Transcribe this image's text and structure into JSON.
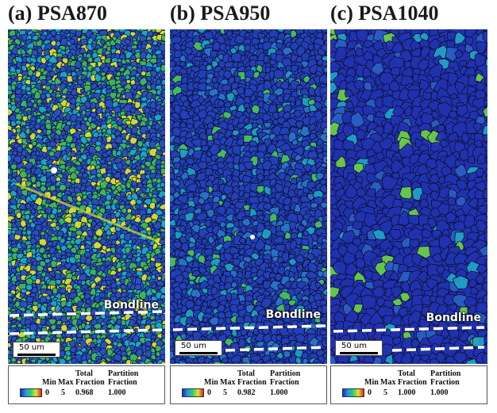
{
  "panels": [
    {
      "title": "(a) PSA870",
      "bondline_label": "Bondline",
      "scale_label": "50 um",
      "legend": {
        "min_label": "Min",
        "max_label": "Max",
        "total_header_1": "Total",
        "total_header_2": "Fraction",
        "partition_header_1": "Partition",
        "partition_header_2": "Fraction",
        "min_value": "0",
        "max_value": "5",
        "total_fraction": "0.968",
        "partition_fraction": "1.000"
      },
      "colors": {
        "base": "#2a4fc0",
        "accent": "#3fb85a",
        "accent2": "#1fa8c8",
        "hi": "#d8e030"
      }
    },
    {
      "title": "(b) PSA950",
      "bondline_label": "Bondline",
      "scale_label": "50 um",
      "legend": {
        "min_label": "Min",
        "max_label": "Max",
        "total_header_1": "Total",
        "total_header_2": "Fraction",
        "partition_header_1": "Partition",
        "partition_header_2": "Fraction",
        "min_value": "0",
        "max_value": "5",
        "total_fraction": "0.982",
        "partition_fraction": "1.000"
      },
      "colors": {
        "base": "#2440b8",
        "accent": "#2a74c8",
        "accent2": "#1fa0c0",
        "hi": "#48c060"
      }
    },
    {
      "title": "(c) PSA1040",
      "bondline_label": "Bondline",
      "scale_label": "50 um",
      "legend": {
        "min_label": "Min",
        "max_label": "Max",
        "total_header_1": "Total",
        "total_header_2": "Fraction",
        "partition_header_1": "Partition",
        "partition_header_2": "Fraction",
        "min_value": "0",
        "max_value": "5",
        "total_fraction": "1.000",
        "partition_fraction": "1.000"
      },
      "colors": {
        "base": "#2233b0",
        "accent": "#2a5fc4",
        "accent2": "#22a0c8",
        "hi": "#6ccc48"
      }
    }
  ]
}
